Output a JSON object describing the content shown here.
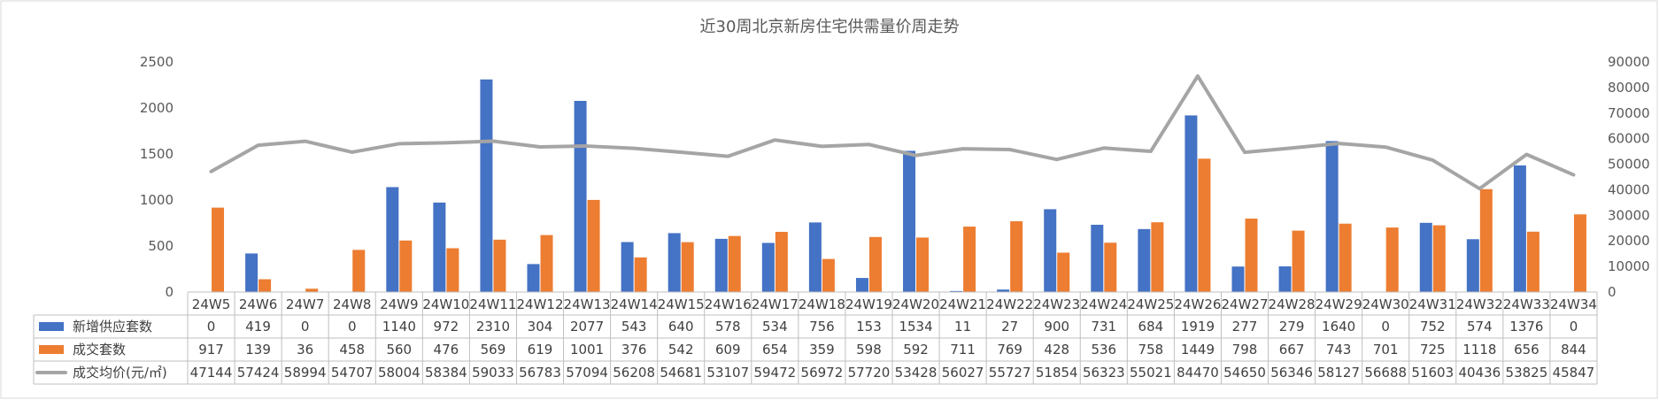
{
  "chart_data": {
    "type": "bar",
    "title": "近30周北京新房住宅供需量价周走势",
    "categories": [
      "24W5",
      "24W6",
      "24W7",
      "24W8",
      "24W9",
      "24W10",
      "24W11",
      "24W12",
      "24W13",
      "24W14",
      "24W15",
      "24W16",
      "24W17",
      "24W18",
      "24W19",
      "24W20",
      "24W21",
      "24W22",
      "24W23",
      "24W24",
      "24W25",
      "24W26",
      "24W27",
      "24W28",
      "24W29",
      "24W30",
      "24W31",
      "24W32",
      "24W33",
      "24W34"
    ],
    "y_left": {
      "ylim": [
        0,
        2500
      ],
      "ticks": [
        "0",
        "500",
        "1000",
        "1500",
        "2000",
        "2500"
      ]
    },
    "y_right": {
      "ylim": [
        0,
        90000
      ],
      "ticks": [
        "0",
        "10000",
        "20000",
        "30000",
        "40000",
        "50000",
        "60000",
        "70000",
        "80000",
        "90000"
      ]
    },
    "grid": false,
    "legend": "data-table",
    "series": [
      {
        "name": "新增供应套数",
        "type": "bar",
        "axis": "left",
        "color": "#4472C4",
        "values": [
          0,
          419,
          0,
          0,
          1140,
          972,
          2310,
          304,
          2077,
          543,
          640,
          578,
          534,
          756,
          153,
          1534,
          11,
          27,
          900,
          731,
          684,
          1919,
          277,
          279,
          1640,
          0,
          752,
          574,
          1376,
          0
        ]
      },
      {
        "name": "成交套数",
        "type": "bar",
        "axis": "left",
        "color": "#ED7D31",
        "values": [
          917,
          139,
          36,
          458,
          560,
          476,
          569,
          619,
          1001,
          376,
          542,
          609,
          654,
          359,
          598,
          592,
          711,
          769,
          428,
          536,
          758,
          1449,
          798,
          667,
          743,
          701,
          725,
          1118,
          656,
          844
        ]
      },
      {
        "name": "成交均价(元/㎡)",
        "type": "line",
        "axis": "right",
        "color": "#A5A5A5",
        "values": [
          47144,
          57424,
          58994,
          54707,
          58004,
          58384,
          59033,
          56783,
          57094,
          56208,
          54681,
          53107,
          59472,
          56972,
          57720,
          53428,
          56027,
          55727,
          51854,
          56323,
          55021,
          84470,
          54650,
          56346,
          58127,
          56688,
          51603,
          40436,
          53825,
          45847
        ]
      }
    ]
  }
}
